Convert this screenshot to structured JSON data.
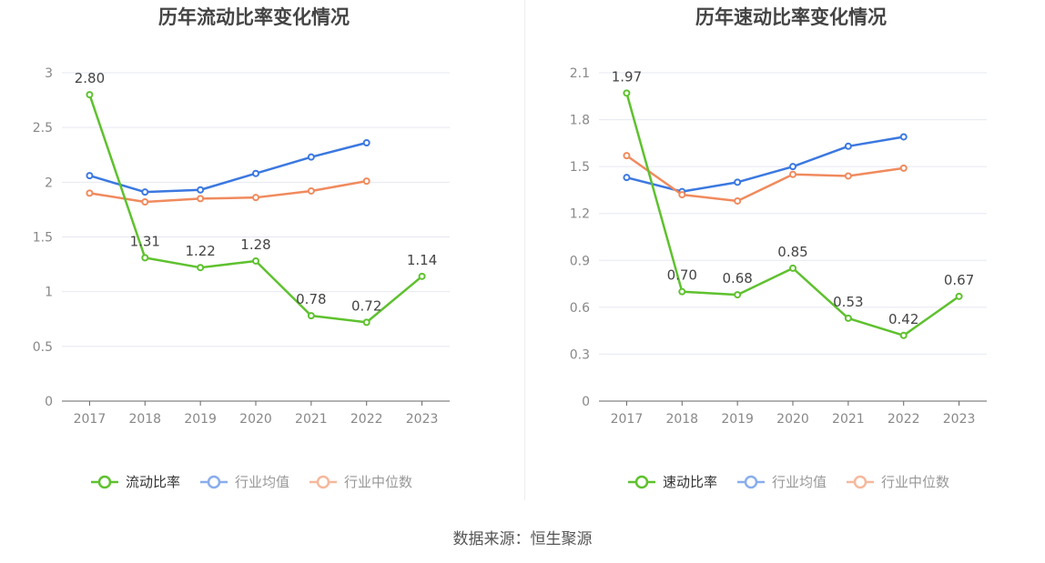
{
  "source": "数据来源：恒生聚源",
  "colors": {
    "company": "#5ec12e",
    "industry_avg": "#3b78e0",
    "industry_median": "#f08a5d",
    "axis": "#666666",
    "grid": "#e6e8f2",
    "tick_text": "#888888",
    "title": "#444444"
  },
  "chart_data": [
    {
      "type": "line",
      "title": "历年流动比率变化情况",
      "x": [
        "2017",
        "2018",
        "2019",
        "2020",
        "2021",
        "2022",
        "2023"
      ],
      "ylim": [
        0,
        3
      ],
      "yticks": [
        "0",
        "0.5",
        "1",
        "1.5",
        "2",
        "2.5",
        "3"
      ],
      "grid": true,
      "legend_position": "bottom",
      "series": [
        {
          "name": "流动比率",
          "values": [
            2.8,
            1.31,
            1.22,
            1.28,
            0.78,
            0.72,
            1.14
          ],
          "labels": [
            "2.80",
            "1.31",
            "1.22",
            "1.28",
            "0.78",
            "0.72",
            "1.14"
          ]
        },
        {
          "name": "行业均值",
          "values": [
            2.06,
            1.91,
            1.93,
            2.08,
            2.23,
            2.36,
            null
          ]
        },
        {
          "name": "行业中位数",
          "values": [
            1.9,
            1.82,
            1.85,
            1.86,
            1.92,
            2.01,
            null
          ]
        }
      ]
    },
    {
      "type": "line",
      "title": "历年速动比率变化情况",
      "x": [
        "2017",
        "2018",
        "2019",
        "2020",
        "2021",
        "2022",
        "2023"
      ],
      "ylim": [
        0,
        2.1
      ],
      "yticks": [
        "0",
        "0.3",
        "0.6",
        "0.9",
        "1.2",
        "1.5",
        "1.8",
        "2.1"
      ],
      "grid": true,
      "legend_position": "bottom",
      "series": [
        {
          "name": "速动比率",
          "values": [
            1.97,
            0.7,
            0.68,
            0.85,
            0.53,
            0.42,
            0.67
          ],
          "labels": [
            "1.97",
            "0.70",
            "0.68",
            "0.85",
            "0.53",
            "0.42",
            "0.67"
          ]
        },
        {
          "name": "行业均值",
          "values": [
            1.43,
            1.34,
            1.4,
            1.5,
            1.63,
            1.69,
            null
          ]
        },
        {
          "name": "行业中位数",
          "values": [
            1.57,
            1.32,
            1.28,
            1.45,
            1.44,
            1.49,
            null
          ]
        }
      ]
    }
  ]
}
